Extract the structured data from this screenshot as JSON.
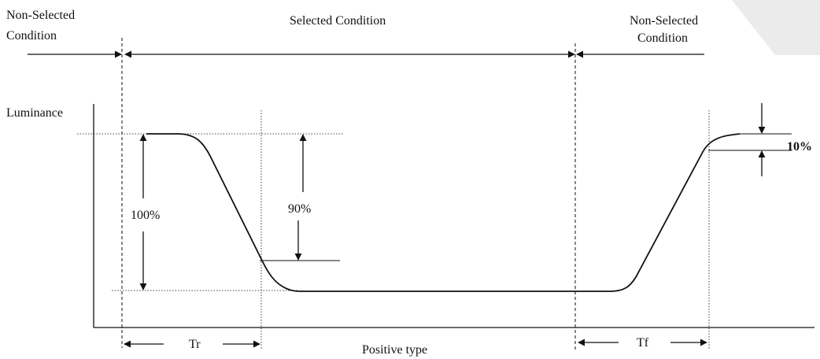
{
  "labels": {
    "non_selected_left_line1": "Non-Selected",
    "non_selected_left_line2": "Condition",
    "selected": "Selected  Condition",
    "non_selected_right_line1": "Non-Selected",
    "non_selected_right_line2": "Condition",
    "luminance": "Luminance",
    "pct_100": "100%",
    "pct_90": "90%",
    "pct_10": "10%",
    "tr": "Tr",
    "tf": "Tf",
    "positive_type": "Positive type"
  },
  "colors": {
    "ink": "#111111",
    "background": "#ffffff",
    "watermark": "#e8e8e8"
  }
}
